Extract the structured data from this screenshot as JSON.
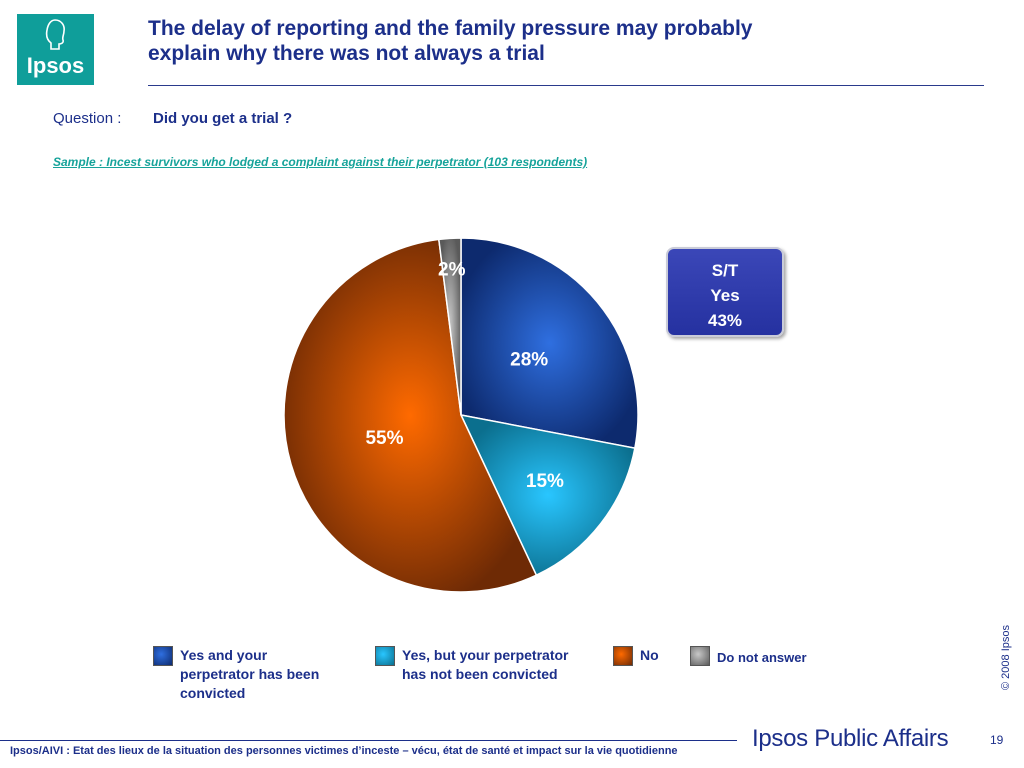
{
  "brand": {
    "logo_text": "Ipsos",
    "footer_brand": "Ipsos Public Affairs",
    "copyright": "© 2008 Ipsos",
    "page_number": "19",
    "accent_color": "#1c2f8a",
    "logo_color": "#0f9e9a"
  },
  "slide": {
    "title_line1": "The delay of reporting and the family pressure may probably",
    "title_line2": "explain why there was not always a trial",
    "question_label": "Question :",
    "question_text": "Did you get a trial ?",
    "sample": "Sample : Incest survivors who lodged a complaint against their perpetrator (103 respondents)",
    "footer": "Ipsos/AIVI : Etat des lieux de la situation des personnes victimes d’inceste – vécu, état de santé et impact sur la vie quotidienne"
  },
  "summary_box": {
    "line1": "S/T",
    "line2": "Yes",
    "line3": "43%"
  },
  "chart_data": {
    "type": "pie",
    "slices": [
      {
        "label": "Yes and your perpetrator has been convicted",
        "value": 28,
        "display": "28%",
        "color_light": "#2f6fe0",
        "color_dark": "#0d2a6e"
      },
      {
        "label": "Yes, but your perpetrator has not been convicted",
        "value": 15,
        "display": "15%",
        "color_light": "#29c6ff",
        "color_dark": "#0b6f8e"
      },
      {
        "label": "No",
        "value": 55,
        "display": "55%",
        "color_light": "#ff6a00",
        "color_dark": "#6e2a05"
      },
      {
        "label": "Do not answer",
        "value": 2,
        "display": "2%",
        "color_light": "#c8c8c8",
        "color_dark": "#5a5a5a"
      }
    ],
    "legend_position": "bottom"
  },
  "legend": {
    "item1_line1": "Yes and your",
    "item1_line2": "perpetrator has been",
    "item1_line3": "convicted",
    "item2_line1": "Yes, but your perpetrator",
    "item2_line2": "has not been convicted",
    "item3_line1": "No",
    "item4_line1": "Do not answer"
  }
}
